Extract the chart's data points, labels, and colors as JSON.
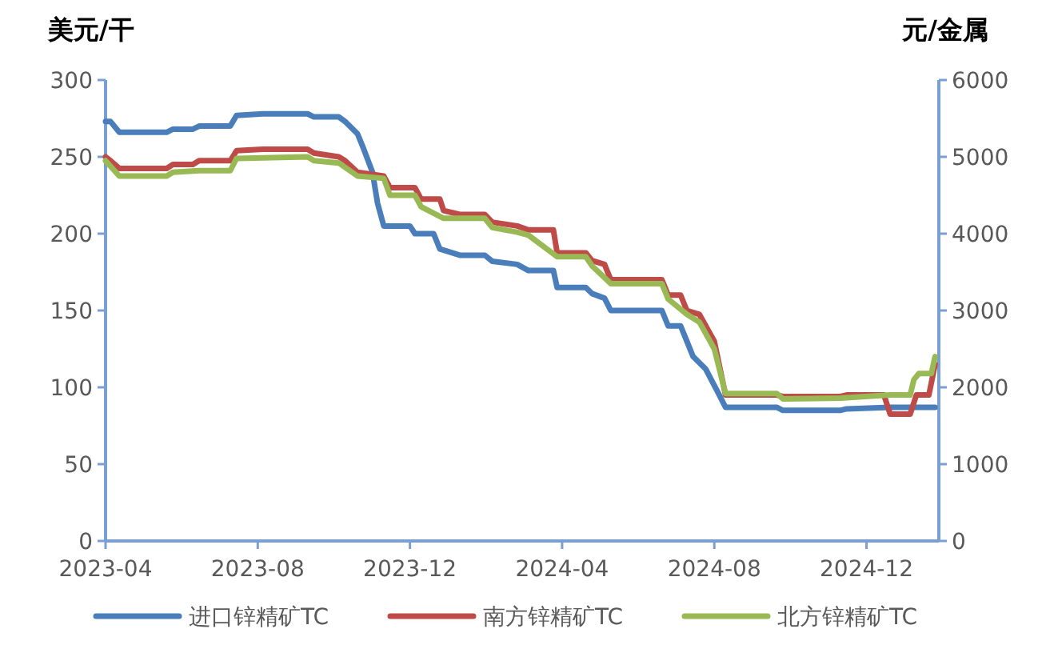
{
  "chart_data": {
    "type": "line",
    "ylabel": "美元/干",
    "y2label": "元/金属",
    "xlim": [
      "2023-04-01",
      "2025-01-28"
    ],
    "xticks": [
      "2023-04",
      "2023-08",
      "2023-12",
      "2024-04",
      "2024-08",
      "2024-12"
    ],
    "ylim": [
      0,
      300
    ],
    "yticks": [
      0,
      50,
      100,
      150,
      200,
      250,
      300
    ],
    "y2lim": [
      0,
      6000
    ],
    "y2ticks": [
      0,
      1000,
      2000,
      3000,
      4000,
      5000,
      6000
    ],
    "grid": false,
    "legend": "bottom",
    "marker": "none",
    "line_style": "solid",
    "series": [
      {
        "name": "进口锌精矿TC",
        "color": "#4a7ebb",
        "axis": "y",
        "x": [
          "2023-04-01",
          "2023-04-05",
          "2023-04-12",
          "2023-05-20",
          "2023-05-25",
          "2023-06-10",
          "2023-06-15",
          "2023-07-10",
          "2023-07-15",
          "2023-08-05",
          "2023-09-10",
          "2023-09-15",
          "2023-10-05",
          "2023-10-10",
          "2023-10-20",
          "2023-10-25",
          "2023-11-01",
          "2023-11-05",
          "2023-11-10",
          "2023-12-01",
          "2023-12-05",
          "2023-12-20",
          "2023-12-25",
          "2024-01-10",
          "2024-01-30",
          "2024-02-05",
          "2024-02-25",
          "2024-03-05",
          "2024-03-25",
          "2024-03-28",
          "2024-04-20",
          "2024-04-25",
          "2024-05-05",
          "2024-05-10",
          "2024-06-20",
          "2024-06-25",
          "2024-07-05",
          "2024-07-10",
          "2024-07-15",
          "2024-07-25",
          "2024-08-05",
          "2024-08-10",
          "2024-09-20",
          "2024-09-25",
          "2024-11-10",
          "2024-11-15",
          "2024-12-20",
          "2025-01-25"
        ],
        "values": [
          273,
          273,
          266,
          266,
          268,
          268,
          270,
          270,
          277,
          278,
          278,
          276,
          276,
          273,
          265,
          255,
          240,
          220,
          205,
          205,
          200,
          200,
          190,
          186,
          186,
          182,
          180,
          176,
          176,
          165,
          165,
          161,
          158,
          150,
          150,
          140,
          140,
          130,
          120,
          112,
          95,
          87,
          87,
          85,
          85,
          86,
          87,
          87
        ]
      },
      {
        "name": "南方锌精矿TC",
        "color": "#be4b48",
        "axis": "y2",
        "x": [
          "2023-04-01",
          "2023-04-05",
          "2023-04-12",
          "2023-05-20",
          "2023-05-25",
          "2023-06-10",
          "2023-06-15",
          "2023-07-10",
          "2023-07-15",
          "2023-08-05",
          "2023-09-10",
          "2023-09-15",
          "2023-10-05",
          "2023-10-10",
          "2023-10-20",
          "2023-11-10",
          "2023-11-15",
          "2023-12-05",
          "2023-12-10",
          "2023-12-25",
          "2023-12-28",
          "2024-01-10",
          "2024-01-30",
          "2024-02-05",
          "2024-02-25",
          "2024-03-05",
          "2024-03-25",
          "2024-03-28",
          "2024-04-20",
          "2024-04-25",
          "2024-05-05",
          "2024-05-10",
          "2024-06-20",
          "2024-06-25",
          "2024-07-05",
          "2024-07-10",
          "2024-07-20",
          "2024-08-01",
          "2024-08-10",
          "2024-09-20",
          "2024-09-25",
          "2024-11-10",
          "2024-11-15",
          "2024-12-15",
          "2024-12-20",
          "2025-01-05",
          "2025-01-10",
          "2025-01-20",
          "2025-01-25"
        ],
        "values": [
          5000,
          4950,
          4850,
          4850,
          4900,
          4900,
          4950,
          4950,
          5080,
          5100,
          5100,
          5050,
          5000,
          4950,
          4800,
          4750,
          4600,
          4600,
          4450,
          4450,
          4300,
          4250,
          4250,
          4150,
          4100,
          4050,
          4050,
          3750,
          3750,
          3650,
          3600,
          3400,
          3400,
          3200,
          3200,
          3000,
          2950,
          2600,
          1900,
          1900,
          1880,
          1880,
          1900,
          1900,
          1650,
          1650,
          1900,
          1900,
          2300
        ]
      },
      {
        "name": "北方锌精矿TC",
        "color": "#98b954",
        "axis": "y2",
        "x": [
          "2023-04-01",
          "2023-04-12",
          "2023-05-20",
          "2023-05-25",
          "2023-06-15",
          "2023-07-10",
          "2023-07-15",
          "2023-09-10",
          "2023-09-15",
          "2023-10-05",
          "2023-10-20",
          "2023-11-10",
          "2023-11-15",
          "2023-12-05",
          "2023-12-10",
          "2023-12-28",
          "2024-01-30",
          "2024-02-05",
          "2024-02-25",
          "2024-03-05",
          "2024-03-28",
          "2024-04-20",
          "2024-04-25",
          "2024-05-10",
          "2024-06-20",
          "2024-06-25",
          "2024-07-10",
          "2024-07-20",
          "2024-08-01",
          "2024-08-10",
          "2024-09-20",
          "2024-09-25",
          "2024-11-10",
          "2024-12-20",
          "2025-01-05",
          "2025-01-08",
          "2025-01-12",
          "2025-01-22",
          "2025-01-25"
        ],
        "values": [
          4950,
          4750,
          4750,
          4800,
          4820,
          4820,
          4980,
          5000,
          4950,
          4920,
          4750,
          4720,
          4500,
          4500,
          4350,
          4200,
          4200,
          4080,
          4020,
          3980,
          3700,
          3700,
          3580,
          3350,
          3350,
          3150,
          2950,
          2850,
          2500,
          1920,
          1920,
          1850,
          1860,
          1900,
          1900,
          2100,
          2180,
          2180,
          2400
        ]
      }
    ]
  }
}
